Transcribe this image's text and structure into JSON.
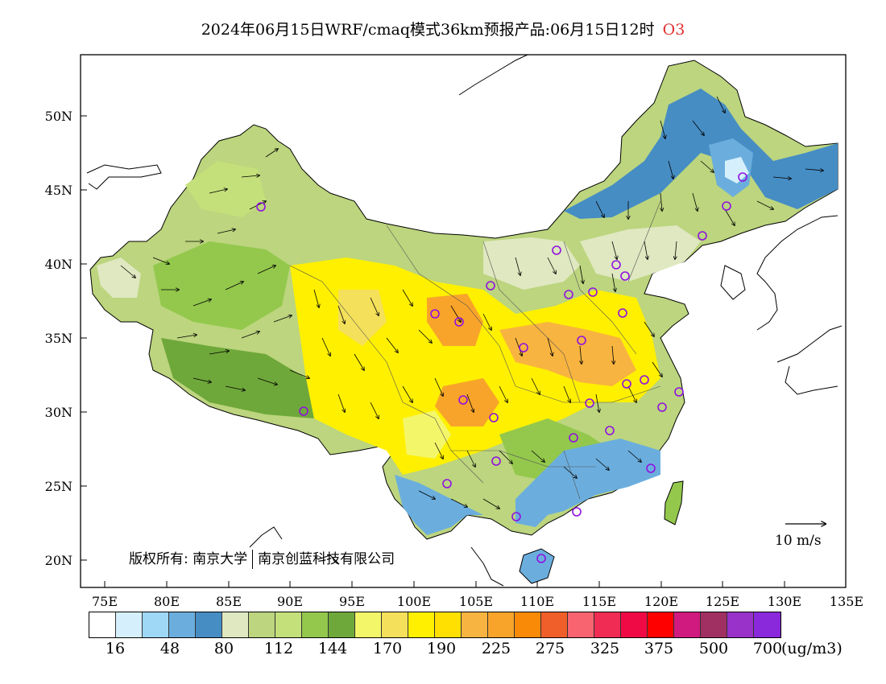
{
  "header": {
    "title": "2024年06月15日WRF/cmaq模式36km预报产品:06月15日12时",
    "pollutant": "O3"
  },
  "map": {
    "lat_labels": [
      "50N",
      "45N",
      "40N",
      "35N",
      "30N",
      "25N",
      "20N"
    ],
    "lon_labels": [
      "75E",
      "80E",
      "85E",
      "90E",
      "95E",
      "100E",
      "105E",
      "110E",
      "115E",
      "120E",
      "125E",
      "130E",
      "135E"
    ],
    "copyright": {
      "owner_label": "版权所有:",
      "org1": "南京大学",
      "org2": "南京创蓝科技有限公司"
    },
    "wind_reference": {
      "label": "10 m/s"
    }
  },
  "legend": {
    "colors": [
      "#ffffff",
      "#d5f0fc",
      "#9ed8f6",
      "#6baede",
      "#468dc4",
      "#dfe8c0",
      "#bcd57e",
      "#c4e07a",
      "#93c84c",
      "#6fa83a",
      "#f4f66a",
      "#f4e05a",
      "#fff000",
      "#ffe000",
      "#f8b440",
      "#f8a42a",
      "#f88a08",
      "#f05f2a",
      "#f86470",
      "#f02c54",
      "#f00a45",
      "#ff0000",
      "#d01a80",
      "#a02f62",
      "#9832c8",
      "#8a28dc"
    ],
    "labels": [
      "16",
      "48",
      "80",
      "112",
      "144",
      "170",
      "190",
      "225",
      "275",
      "325",
      "375",
      "500",
      "700"
    ],
    "unit": "(ug/m3)"
  }
}
